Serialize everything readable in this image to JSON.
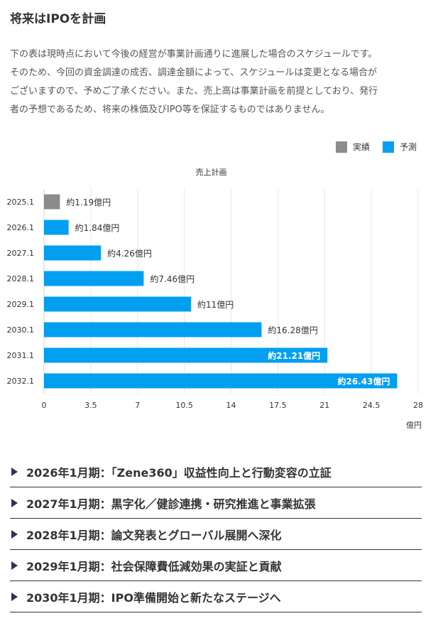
{
  "heading": "将来はIPOを計画",
  "intro_lines": [
    "下の表は現時点において今後の経営が事業計画通りに進展した場合のスケジュールです。",
    "そのため、今回の資金調達の成否、調達金額によって、スケジュールは変更となる場合が",
    "ございますので、予めご了承ください。また、売上高は事業計画を前提としており、発行",
    "者の予想であるため、将来の株価及びIPO等を保証するものではありません。"
  ],
  "colors": {
    "actual": "#8c8c8c",
    "forecast": "#009ff0"
  },
  "chart_data": {
    "type": "bar",
    "orientation": "horizontal",
    "title": "売上計画",
    "categories": [
      "2025.1",
      "2026.1",
      "2027.1",
      "2028.1",
      "2029.1",
      "2030.1",
      "2031.1",
      "2032.1"
    ],
    "values": [
      1.19,
      1.84,
      4.26,
      7.46,
      11,
      16.28,
      21.21,
      26.43
    ],
    "status": [
      "実績",
      "予測",
      "予測",
      "予測",
      "予測",
      "予測",
      "予測",
      "予測"
    ],
    "data_labels": [
      "約1.19億円",
      "約1.84億円",
      "約4.26億円",
      "約7.46億円",
      "約11億円",
      "約16.28億円",
      "約21.21億円",
      "約26.43億円"
    ],
    "legend": {
      "placement": "top-right",
      "entries": [
        "実績",
        "予測"
      ]
    },
    "xlim": [
      0,
      28
    ],
    "xticks": [
      "0",
      "3.5",
      "7",
      "10.5",
      "14",
      "17.5",
      "21",
      "24.5",
      "28"
    ],
    "xunit": "億円",
    "grid": true
  },
  "milestones": [
    "2026年1月期：「Zene360」収益性向上と行動変容の立証",
    "2027年1月期：黒字化／健診連携・研究推進と事業拡張",
    "2028年1月期：論文発表とグローバル展開へ深化",
    "2029年1月期：社会保障費低減効果の実証と貢献",
    "2030年1月期：IPO準備開始と新たなステージへ"
  ]
}
